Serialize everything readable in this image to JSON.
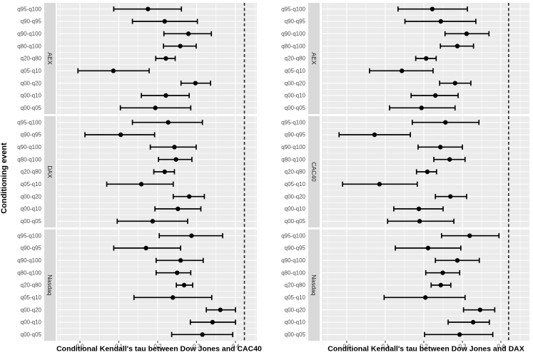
{
  "chart_data": {
    "type": "scatter",
    "subtype": "pointrange-forest",
    "ylabel": "Conditioning event",
    "categories": [
      "q95-q100",
      "q90-q95",
      "q90-q100",
      "q80-q100",
      "q20-q80",
      "q05-q10",
      "q00-q20",
      "q00-q10",
      "q00-q05"
    ],
    "x_ticks": [
      0.0,
      0.1,
      0.2,
      0.3,
      0.4
    ],
    "x_tick_labels": [
      "0.0",
      "0.1",
      "0.2",
      "0.3",
      "0.4"
    ],
    "xlim": [
      -0.06,
      0.47
    ],
    "grid": true,
    "colors": {
      "panel_bg": "#EBEBEB",
      "strip_bg": "#D9D9D9",
      "grid": "#FFFFFF",
      "data": "#000000",
      "tick_label": "#4D4D4D",
      "tick_mark": "#333333",
      "ref_line": "#222222",
      "strip_text": "#1A1A1A",
      "title": "#000000"
    },
    "panels": [
      {
        "xlabel": "Conditional Kendall's tau between Dow Jones and CAC40",
        "ref_line": 0.423,
        "facets": [
          {
            "label": "AEX",
            "est": [
              0.175,
              0.218,
              0.279,
              0.258,
              0.221,
              0.086,
              0.297,
              0.221,
              0.194
            ],
            "lo": [
              0.087,
              0.135,
              0.216,
              0.215,
              0.195,
              -0.005,
              0.26,
              0.158,
              0.104
            ],
            "hi": [
              0.261,
              0.302,
              0.338,
              0.299,
              0.245,
              0.178,
              0.336,
              0.281,
              0.285
            ]
          },
          {
            "label": "DAX",
            "est": [
              0.227,
              0.105,
              0.243,
              0.247,
              0.218,
              0.158,
              0.281,
              0.252,
              0.187
            ],
            "lo": [
              0.135,
              0.013,
              0.181,
              0.202,
              0.19,
              0.069,
              0.24,
              0.193,
              0.096
            ],
            "hi": [
              0.315,
              0.192,
              0.299,
              0.288,
              0.243,
              0.24,
              0.32,
              0.311,
              0.277
            ]
          },
          {
            "label": "Nasdaq",
            "est": [
              0.287,
              0.17,
              0.259,
              0.25,
              0.268,
              0.239,
              0.361,
              0.341,
              0.315
            ],
            "lo": [
              0.204,
              0.087,
              0.196,
              0.196,
              0.248,
              0.139,
              0.325,
              0.284,
              0.236
            ],
            "hi": [
              0.367,
              0.259,
              0.317,
              0.285,
              0.29,
              0.339,
              0.4,
              0.4,
              0.393
            ]
          }
        ]
      },
      {
        "xlabel": "Conditional Kendall's tau between Dow Jones and DAX",
        "ref_line": 0.42,
        "facets": [
          {
            "label": "AEX",
            "est": [
              0.222,
              0.244,
              0.311,
              0.287,
              0.206,
              0.143,
              0.281,
              0.23,
              0.194
            ],
            "lo": [
              0.133,
              0.151,
              0.255,
              0.243,
              0.179,
              0.059,
              0.241,
              0.167,
              0.111
            ],
            "hi": [
              0.313,
              0.335,
              0.369,
              0.329,
              0.232,
              0.224,
              0.322,
              0.289,
              0.281
            ]
          },
          {
            "label": "CAC40",
            "est": [
              0.256,
              0.072,
              0.243,
              0.267,
              0.209,
              0.085,
              0.269,
              0.187,
              0.189
            ],
            "lo": [
              0.17,
              -0.02,
              0.185,
              0.226,
              0.181,
              -0.011,
              0.23,
              0.122,
              0.106
            ],
            "hi": [
              0.343,
              0.165,
              0.3,
              0.307,
              0.233,
              0.183,
              0.311,
              0.25,
              0.278
            ]
          },
          {
            "label": "Nasdaq",
            "est": [
              0.319,
              0.211,
              0.287,
              0.249,
              0.244,
              0.204,
              0.346,
              0.328,
              0.293
            ],
            "lo": [
              0.246,
              0.126,
              0.23,
              0.205,
              0.219,
              0.097,
              0.303,
              0.263,
              0.202
            ],
            "hi": [
              0.395,
              0.296,
              0.344,
              0.293,
              0.27,
              0.307,
              0.384,
              0.37,
              0.379
            ]
          }
        ]
      }
    ]
  }
}
